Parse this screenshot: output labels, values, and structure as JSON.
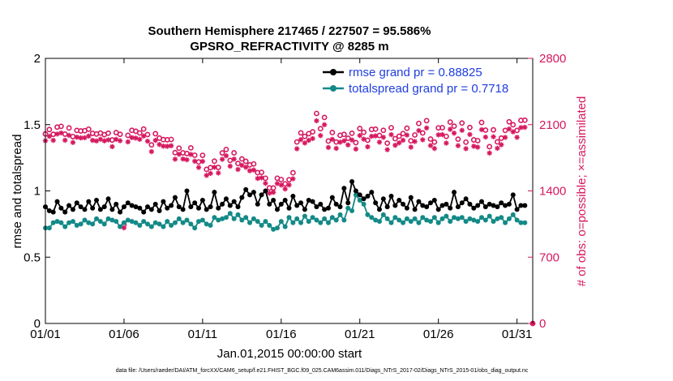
{
  "chart_data": {
    "type": "line",
    "title": "Southern Hemisphere 217465 / 227507 = 95.586%",
    "subtitle": "GPSRO_REFRACTIVITY @ 8285 m",
    "xlabel": "Jan.01,2015 00:00:00 start",
    "ylabel": "rmse and totalspread",
    "y2label": "# of obs: o=possible; ×=assimilated",
    "footnote": "data file: /Users/raeder/DAI/ATM_forcXX/CAM6_setup/f.e21.FHIST_BGC.f09_025.CAM6assim.011/Diags_NTrS_2017-02/Diags_NTrS_2015-01/obs_diag_output.nc",
    "x_ticks": [
      "01/01",
      "01/06",
      "01/11",
      "01/16",
      "01/21",
      "01/26",
      "01/31"
    ],
    "x_tick_days": [
      0,
      5,
      10,
      15,
      20,
      25,
      30
    ],
    "xlim": [
      0,
      31
    ],
    "y_ticks": [
      "0",
      "0.5",
      "1",
      "1.5",
      "2"
    ],
    "ylim": [
      0,
      2
    ],
    "y2_ticks": [
      "0",
      "700",
      "1400",
      "2100",
      "2800"
    ],
    "y2lim": [
      0,
      2800
    ],
    "grid": false,
    "legend_position": "top-right",
    "colors": {
      "rmse": "#000000",
      "spread": "#138a87",
      "obs": "#d6185f",
      "legend_text": "#1f3ee0"
    },
    "series": [
      {
        "name": "rmse grand pr = 0.88825",
        "axis": "left",
        "marker": "filled-circle",
        "x": [
          0.0,
          0.25,
          0.5,
          0.75,
          1.0,
          1.25,
          1.5,
          1.75,
          2.0,
          2.25,
          2.5,
          2.75,
          3.0,
          3.25,
          3.5,
          3.75,
          4.0,
          4.25,
          4.5,
          4.75,
          5.0,
          5.25,
          5.5,
          5.75,
          6.0,
          6.25,
          6.5,
          6.75,
          7.0,
          7.25,
          7.5,
          7.75,
          8.0,
          8.25,
          8.5,
          8.75,
          9.0,
          9.25,
          9.5,
          9.75,
          10.0,
          10.25,
          10.5,
          10.75,
          11.0,
          11.25,
          11.5,
          11.75,
          12.0,
          12.25,
          12.5,
          12.75,
          13.0,
          13.25,
          13.5,
          13.75,
          14.0,
          14.25,
          14.5,
          14.75,
          15.0,
          15.25,
          15.5,
          15.75,
          16.0,
          16.25,
          16.5,
          16.75,
          17.0,
          17.25,
          17.5,
          17.75,
          18.0,
          18.25,
          18.5,
          18.75,
          19.0,
          19.25,
          19.5,
          19.75,
          20.0,
          20.25,
          20.5,
          20.75,
          21.0,
          21.25,
          21.5,
          21.75,
          22.0,
          22.25,
          22.5,
          22.75,
          23.0,
          23.25,
          23.5,
          23.75,
          24.0,
          24.25,
          24.5,
          24.75,
          25.0,
          25.25,
          25.5,
          25.75,
          26.0,
          26.25,
          26.5,
          26.75,
          27.0,
          27.25,
          27.5,
          27.75,
          28.0,
          28.25,
          28.5,
          28.75,
          29.0,
          29.25,
          29.5,
          29.75,
          30.0,
          30.25,
          30.5
        ],
        "values": [
          0.88,
          0.85,
          0.84,
          0.92,
          0.87,
          0.84,
          0.89,
          0.86,
          0.91,
          0.88,
          0.86,
          0.92,
          0.87,
          0.93,
          0.86,
          0.88,
          0.94,
          0.86,
          0.9,
          0.84,
          0.88,
          0.91,
          0.89,
          0.88,
          0.87,
          0.84,
          0.88,
          0.86,
          0.9,
          0.85,
          0.92,
          0.87,
          0.89,
          0.95,
          0.88,
          0.86,
          1.0,
          0.88,
          0.91,
          0.87,
          0.93,
          0.86,
          0.88,
          0.99,
          0.87,
          0.9,
          0.94,
          0.89,
          0.92,
          0.88,
          0.95,
          1.01,
          0.97,
          0.99,
          0.9,
          0.97,
          1.0,
          0.9,
          0.93,
          0.86,
          0.9,
          0.93,
          0.87,
          0.96,
          0.89,
          0.91,
          0.86,
          0.93,
          0.92,
          0.88,
          0.9,
          0.86,
          0.87,
          0.95,
          0.9,
          0.88,
          1.02,
          0.91,
          1.07,
          1.0,
          0.97,
          0.94,
          0.96,
          0.99,
          0.91,
          0.86,
          0.94,
          0.88,
          0.96,
          0.89,
          0.93,
          0.9,
          0.87,
          0.95,
          0.86,
          0.92,
          0.89,
          0.88,
          0.91,
          0.93,
          0.86,
          0.89,
          0.9,
          0.87,
          0.99,
          0.88,
          0.91,
          0.94,
          0.9,
          0.87,
          0.89,
          0.92,
          0.88,
          0.9,
          0.89,
          0.88,
          0.91,
          0.89,
          0.9,
          0.97,
          0.86,
          0.89,
          0.89
        ]
      },
      {
        "name": "totalspread grand pr = 0.7718",
        "axis": "left",
        "marker": "filled-circle",
        "x": [
          0.0,
          0.25,
          0.5,
          0.75,
          1.0,
          1.25,
          1.5,
          1.75,
          2.0,
          2.25,
          2.5,
          2.75,
          3.0,
          3.25,
          3.5,
          3.75,
          4.0,
          4.25,
          4.5,
          4.75,
          5.0,
          5.25,
          5.5,
          5.75,
          6.0,
          6.25,
          6.5,
          6.75,
          7.0,
          7.25,
          7.5,
          7.75,
          8.0,
          8.25,
          8.5,
          8.75,
          9.0,
          9.25,
          9.5,
          9.75,
          10.0,
          10.25,
          10.5,
          10.75,
          11.0,
          11.25,
          11.5,
          11.75,
          12.0,
          12.25,
          12.5,
          12.75,
          13.0,
          13.25,
          13.5,
          13.75,
          14.0,
          14.25,
          14.5,
          14.75,
          15.0,
          15.25,
          15.5,
          15.75,
          16.0,
          16.25,
          16.5,
          16.75,
          17.0,
          17.25,
          17.5,
          17.75,
          18.0,
          18.25,
          18.5,
          18.75,
          19.0,
          19.25,
          19.5,
          19.75,
          20.0,
          20.25,
          20.5,
          20.75,
          21.0,
          21.25,
          21.5,
          21.75,
          22.0,
          22.25,
          22.5,
          22.75,
          23.0,
          23.25,
          23.5,
          23.75,
          24.0,
          24.25,
          24.5,
          24.75,
          25.0,
          25.25,
          25.5,
          25.75,
          26.0,
          26.25,
          26.5,
          26.75,
          27.0,
          27.25,
          27.5,
          27.75,
          28.0,
          28.25,
          28.5,
          28.75,
          29.0,
          29.25,
          29.5,
          29.75,
          30.0,
          30.25,
          30.5
        ],
        "values": [
          0.72,
          0.72,
          0.76,
          0.77,
          0.76,
          0.73,
          0.76,
          0.77,
          0.74,
          0.75,
          0.78,
          0.76,
          0.75,
          0.79,
          0.77,
          0.75,
          0.79,
          0.78,
          0.77,
          0.73,
          0.76,
          0.78,
          0.77,
          0.76,
          0.74,
          0.77,
          0.75,
          0.73,
          0.76,
          0.75,
          0.73,
          0.77,
          0.74,
          0.76,
          0.79,
          0.76,
          0.78,
          0.75,
          0.72,
          0.77,
          0.78,
          0.75,
          0.74,
          0.8,
          0.78,
          0.79,
          0.8,
          0.83,
          0.79,
          0.82,
          0.78,
          0.8,
          0.76,
          0.79,
          0.77,
          0.74,
          0.77,
          0.74,
          0.71,
          0.72,
          0.77,
          0.73,
          0.8,
          0.76,
          0.79,
          0.76,
          0.81,
          0.77,
          0.8,
          0.78,
          0.76,
          0.79,
          0.76,
          0.8,
          0.78,
          0.82,
          0.78,
          0.87,
          0.85,
          0.97,
          0.93,
          0.9,
          0.82,
          0.8,
          0.78,
          0.77,
          0.82,
          0.79,
          0.76,
          0.8,
          0.78,
          0.76,
          0.79,
          0.77,
          0.79,
          0.76,
          0.8,
          0.78,
          0.77,
          0.8,
          0.76,
          0.79,
          0.81,
          0.77,
          0.8,
          0.79,
          0.8,
          0.77,
          0.79,
          0.78,
          0.77,
          0.8,
          0.78,
          0.81,
          0.77,
          0.79,
          0.8,
          0.76,
          0.79,
          0.82,
          0.78,
          0.76,
          0.76
        ]
      },
      {
        "name": "possible",
        "axis": "right",
        "marker": "open-circle",
        "x": [
          0.0,
          0.25,
          0.5,
          0.75,
          1.0,
          1.25,
          1.5,
          1.75,
          2.0,
          2.25,
          2.5,
          2.75,
          3.0,
          3.25,
          3.5,
          3.75,
          4.0,
          4.25,
          4.5,
          4.75,
          5.0,
          5.25,
          5.5,
          5.75,
          6.0,
          6.25,
          6.5,
          6.75,
          7.0,
          7.25,
          7.5,
          7.75,
          8.0,
          8.25,
          8.5,
          8.75,
          9.0,
          9.25,
          9.5,
          9.75,
          10.0,
          10.25,
          10.5,
          10.75,
          11.0,
          11.25,
          11.5,
          11.75,
          12.0,
          12.25,
          12.5,
          12.75,
          13.0,
          13.25,
          13.5,
          13.75,
          14.0,
          14.25,
          14.5,
          14.75,
          15.0,
          15.25,
          15.5,
          15.75,
          16.0,
          16.25,
          16.5,
          16.75,
          17.0,
          17.25,
          17.5,
          17.75,
          18.0,
          18.25,
          18.5,
          18.75,
          19.0,
          19.25,
          19.5,
          19.75,
          20.0,
          20.25,
          20.5,
          20.75,
          21.0,
          21.25,
          21.5,
          21.75,
          22.0,
          22.25,
          22.5,
          22.75,
          23.0,
          23.25,
          23.5,
          23.75,
          24.0,
          24.25,
          24.5,
          24.75,
          25.0,
          25.25,
          25.5,
          25.75,
          26.0,
          26.25,
          26.5,
          26.75,
          27.0,
          27.25,
          27.5,
          27.75,
          28.0,
          28.25,
          28.5,
          28.75,
          29.0,
          29.25,
          29.5,
          29.75,
          30.0,
          30.25,
          30.5,
          31.0
        ],
        "values": [
          2002,
          2048,
          1998,
          2074,
          2082,
          2000,
          2065,
          1974,
          2039,
          2033,
          2036,
          2052,
          2008,
          2001,
          2011,
          1994,
          2010,
          1938,
          2016,
          1998,
          1043,
          1987,
          2040,
          2030,
          2012,
          2054,
          1995,
          1886,
          2004,
          1958,
          1942,
          1940,
          1944,
          1804,
          1852,
          1802,
          1795,
          1855,
          1777,
          1706,
          1776,
          1628,
          1646,
          1714,
          1648,
          1801,
          1838,
          1722,
          1802,
          1690,
          1738,
          1713,
          1675,
          1685,
          1593,
          1596,
          1534,
          1432,
          1431,
          1534,
          1520,
          1474,
          1518,
          1592,
          1917,
          2013,
          1976,
          2005,
          2024,
          2218,
          2057,
          2176,
          1927,
          2017,
          1917,
          1987,
          1997,
          1956,
          2009,
          1910,
          2059,
          2019,
          1935,
          2049,
          2053,
          1986,
          2040,
          1904,
          2067,
          1952,
          1978,
          2006,
          2062,
          1929,
          1991,
          2113,
          2012,
          2142,
          1948,
          1916,
          2066,
          2068,
          1976,
          2127,
          2084,
          1947,
          2117,
          1915,
          2070,
          1939,
          1931,
          2123,
          2042,
          1867,
          2045,
          1918,
          1957,
          2039,
          2130,
          2099,
          2039,
          2145,
          2147,
          0
        ]
      },
      {
        "name": "assimilated",
        "axis": "right",
        "marker": "asterisk",
        "x": [
          0.0,
          0.25,
          0.5,
          0.75,
          1.0,
          1.25,
          1.5,
          1.75,
          2.0,
          2.25,
          2.5,
          2.75,
          3.0,
          3.25,
          3.5,
          3.75,
          4.0,
          4.25,
          4.5,
          4.75,
          5.0,
          5.25,
          5.5,
          5.75,
          6.0,
          6.25,
          6.5,
          6.75,
          7.0,
          7.25,
          7.5,
          7.75,
          8.0,
          8.25,
          8.5,
          8.75,
          9.0,
          9.25,
          9.5,
          9.75,
          10.0,
          10.25,
          10.5,
          10.75,
          11.0,
          11.25,
          11.5,
          11.75,
          12.0,
          12.25,
          12.5,
          12.75,
          13.0,
          13.25,
          13.5,
          13.75,
          14.0,
          14.25,
          14.5,
          14.75,
          15.0,
          15.25,
          15.5,
          15.75,
          16.0,
          16.25,
          16.5,
          16.75,
          17.0,
          17.25,
          17.5,
          17.75,
          18.0,
          18.25,
          18.5,
          18.75,
          19.0,
          19.25,
          19.5,
          19.75,
          20.0,
          20.25,
          20.5,
          20.75,
          21.0,
          21.25,
          21.5,
          21.75,
          22.0,
          22.25,
          22.5,
          22.75,
          23.0,
          23.25,
          23.5,
          23.75,
          24.0,
          24.25,
          24.5,
          24.75,
          25.0,
          25.25,
          25.5,
          25.75,
          26.0,
          26.25,
          26.5,
          26.75,
          27.0,
          27.25,
          27.5,
          27.75,
          28.0,
          28.25,
          28.5,
          28.75,
          29.0,
          29.25,
          29.5,
          29.75,
          30.0,
          30.25,
          30.5,
          31.0
        ],
        "values": [
          1930,
          1977,
          1934,
          2001,
          2012,
          1935,
          1987,
          1912,
          1967,
          1960,
          1962,
          1979,
          1934,
          1928,
          1946,
          1929,
          1939,
          1868,
          1945,
          1930,
          1010,
          1918,
          1963,
          1958,
          1945,
          1980,
          1925,
          1815,
          1934,
          1890,
          1873,
          1871,
          1877,
          1735,
          1787,
          1737,
          1729,
          1785,
          1714,
          1648,
          1712,
          1564,
          1585,
          1650,
          1589,
          1734,
          1771,
          1661,
          1736,
          1627,
          1671,
          1650,
          1613,
          1621,
          1532,
          1538,
          1480,
          1376,
          1385,
          1478,
          1462,
          1420,
          1463,
          1528,
          1845,
          1942,
          1906,
          1934,
          1953,
          2141,
          1984,
          2099,
          1859,
          1945,
          1849,
          1915,
          1929,
          1886,
          1938,
          1842,
          1985,
          1947,
          1866,
          1977,
          1981,
          1915,
          1966,
          1836,
          1994,
          1882,
          1907,
          1935,
          1990,
          1862,
          1922,
          2037,
          1940,
          2065,
          1879,
          1848,
          1992,
          1994,
          1905,
          2051,
          2010,
          1878,
          2040,
          1846,
          1996,
          1872,
          1862,
          2047,
          1969,
          1800,
          1972,
          1850,
          1888,
          1965,
          2054,
          2024,
          1966,
          2069,
          2072,
          0
        ]
      }
    ]
  }
}
